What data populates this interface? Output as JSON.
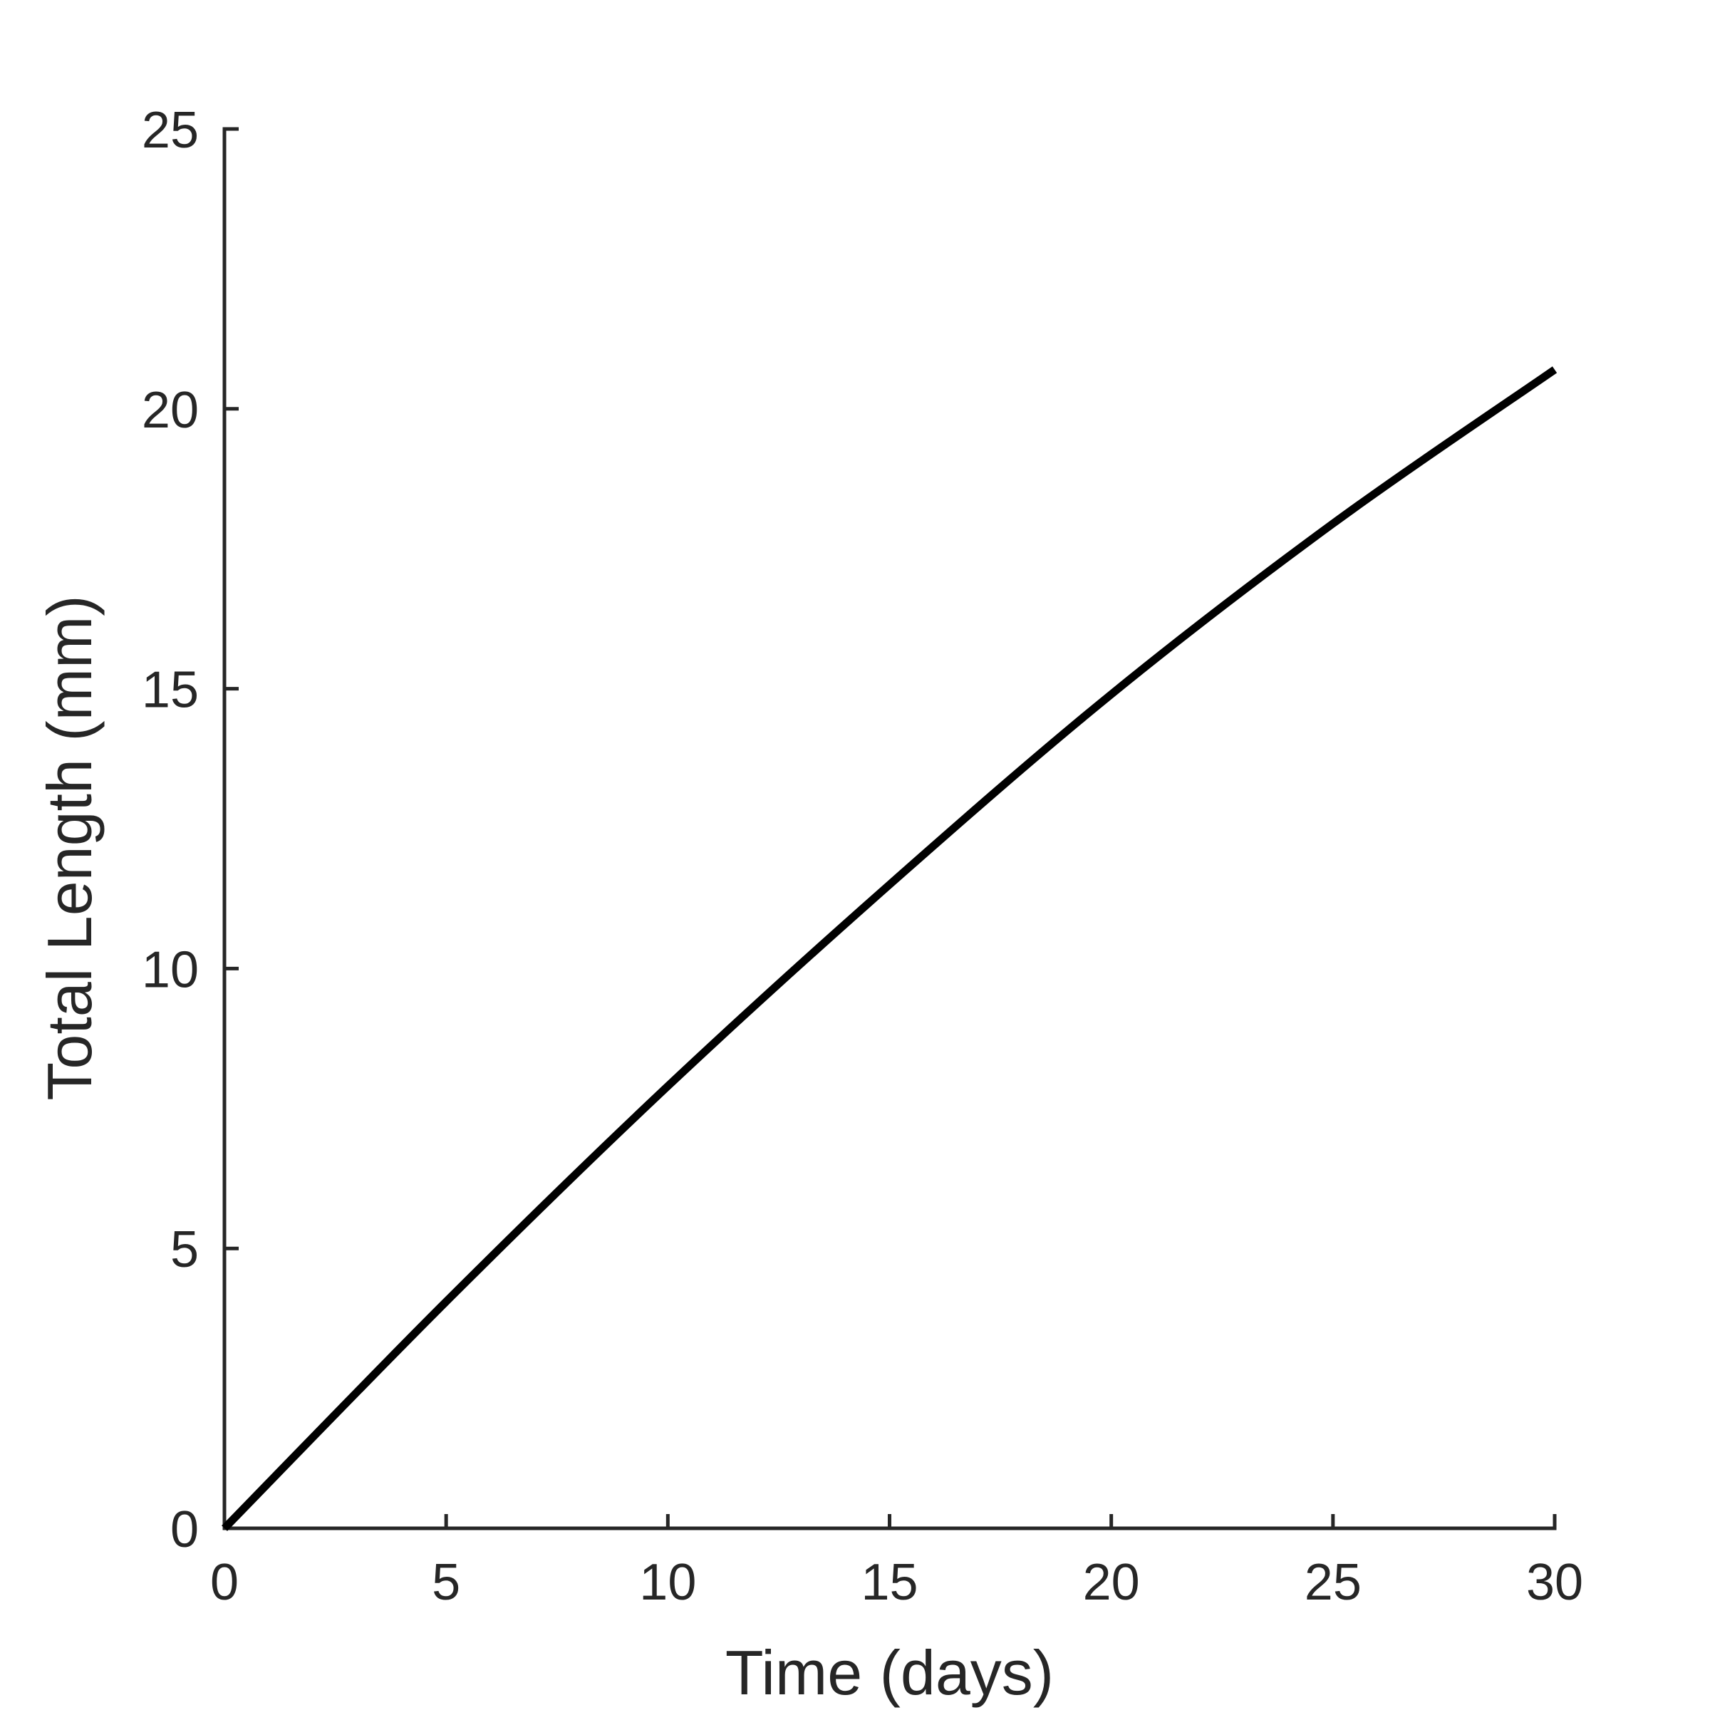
{
  "chart_data": {
    "type": "line",
    "title": "",
    "xlabel": "Time (days)",
    "ylabel": "Total Length (mm)",
    "xlim": [
      0,
      30
    ],
    "ylim": [
      0,
      25
    ],
    "xticks": [
      0,
      5,
      10,
      15,
      20,
      25,
      30
    ],
    "yticks": [
      0,
      5,
      10,
      15,
      20,
      25
    ],
    "xtick_labels": [
      "0",
      "5",
      "10",
      "15",
      "20",
      "25",
      "30"
    ],
    "ytick_labels": [
      "0",
      "5",
      "10",
      "15",
      "20",
      "25"
    ],
    "grid": false,
    "legend": "none",
    "series": [
      {
        "color": "#000000",
        "x": [
          0,
          5,
          10,
          15,
          20,
          25,
          30
        ],
        "y": [
          0,
          4.05,
          7.9,
          11.5,
          14.9,
          17.95,
          20.7
        ]
      }
    ]
  }
}
